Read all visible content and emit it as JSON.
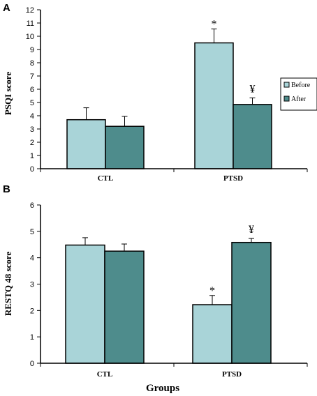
{
  "colors": {
    "before": "#a9d4d8",
    "after": "#4e8c8c",
    "axis": "#000000"
  },
  "chart_data": [
    {
      "type": "bar",
      "panel": "A",
      "categories": [
        "CTL",
        "PTSD"
      ],
      "series": [
        {
          "name": "Before",
          "values": [
            3.7,
            9.5
          ],
          "errors": [
            0.9,
            1.05
          ]
        },
        {
          "name": "After",
          "values": [
            3.2,
            4.85
          ],
          "errors": [
            0.75,
            0.5
          ]
        }
      ],
      "title": "",
      "xlabel": "",
      "ylabel": "PSQI score",
      "ylim": [
        0,
        12
      ],
      "yticks": [
        0,
        1,
        2,
        3,
        4,
        5,
        6,
        7,
        8,
        9,
        10,
        11,
        12
      ],
      "grid": false,
      "legend": "right",
      "annotations": [
        {
          "text": "*",
          "category": "PTSD",
          "series": "Before"
        },
        {
          "text": "¥",
          "category": "PTSD",
          "series": "After"
        }
      ]
    },
    {
      "type": "bar",
      "panel": "B",
      "categories": [
        "CTL",
        "PTSD"
      ],
      "series": [
        {
          "name": "Before",
          "values": [
            4.48,
            2.22
          ],
          "errors": [
            0.28,
            0.35
          ]
        },
        {
          "name": "After",
          "values": [
            4.25,
            4.58
          ],
          "errors": [
            0.27,
            0.15
          ]
        }
      ],
      "title": "",
      "xlabel": "Groups",
      "ylabel": "RESTQ 48 score",
      "ylim": [
        0,
        6
      ],
      "yticks": [
        0,
        1,
        2,
        3,
        4,
        5,
        6
      ],
      "grid": false,
      "annotations": [
        {
          "text": "*",
          "category": "PTSD",
          "series": "Before"
        },
        {
          "text": "¥",
          "category": "PTSD",
          "series": "After"
        }
      ]
    }
  ]
}
